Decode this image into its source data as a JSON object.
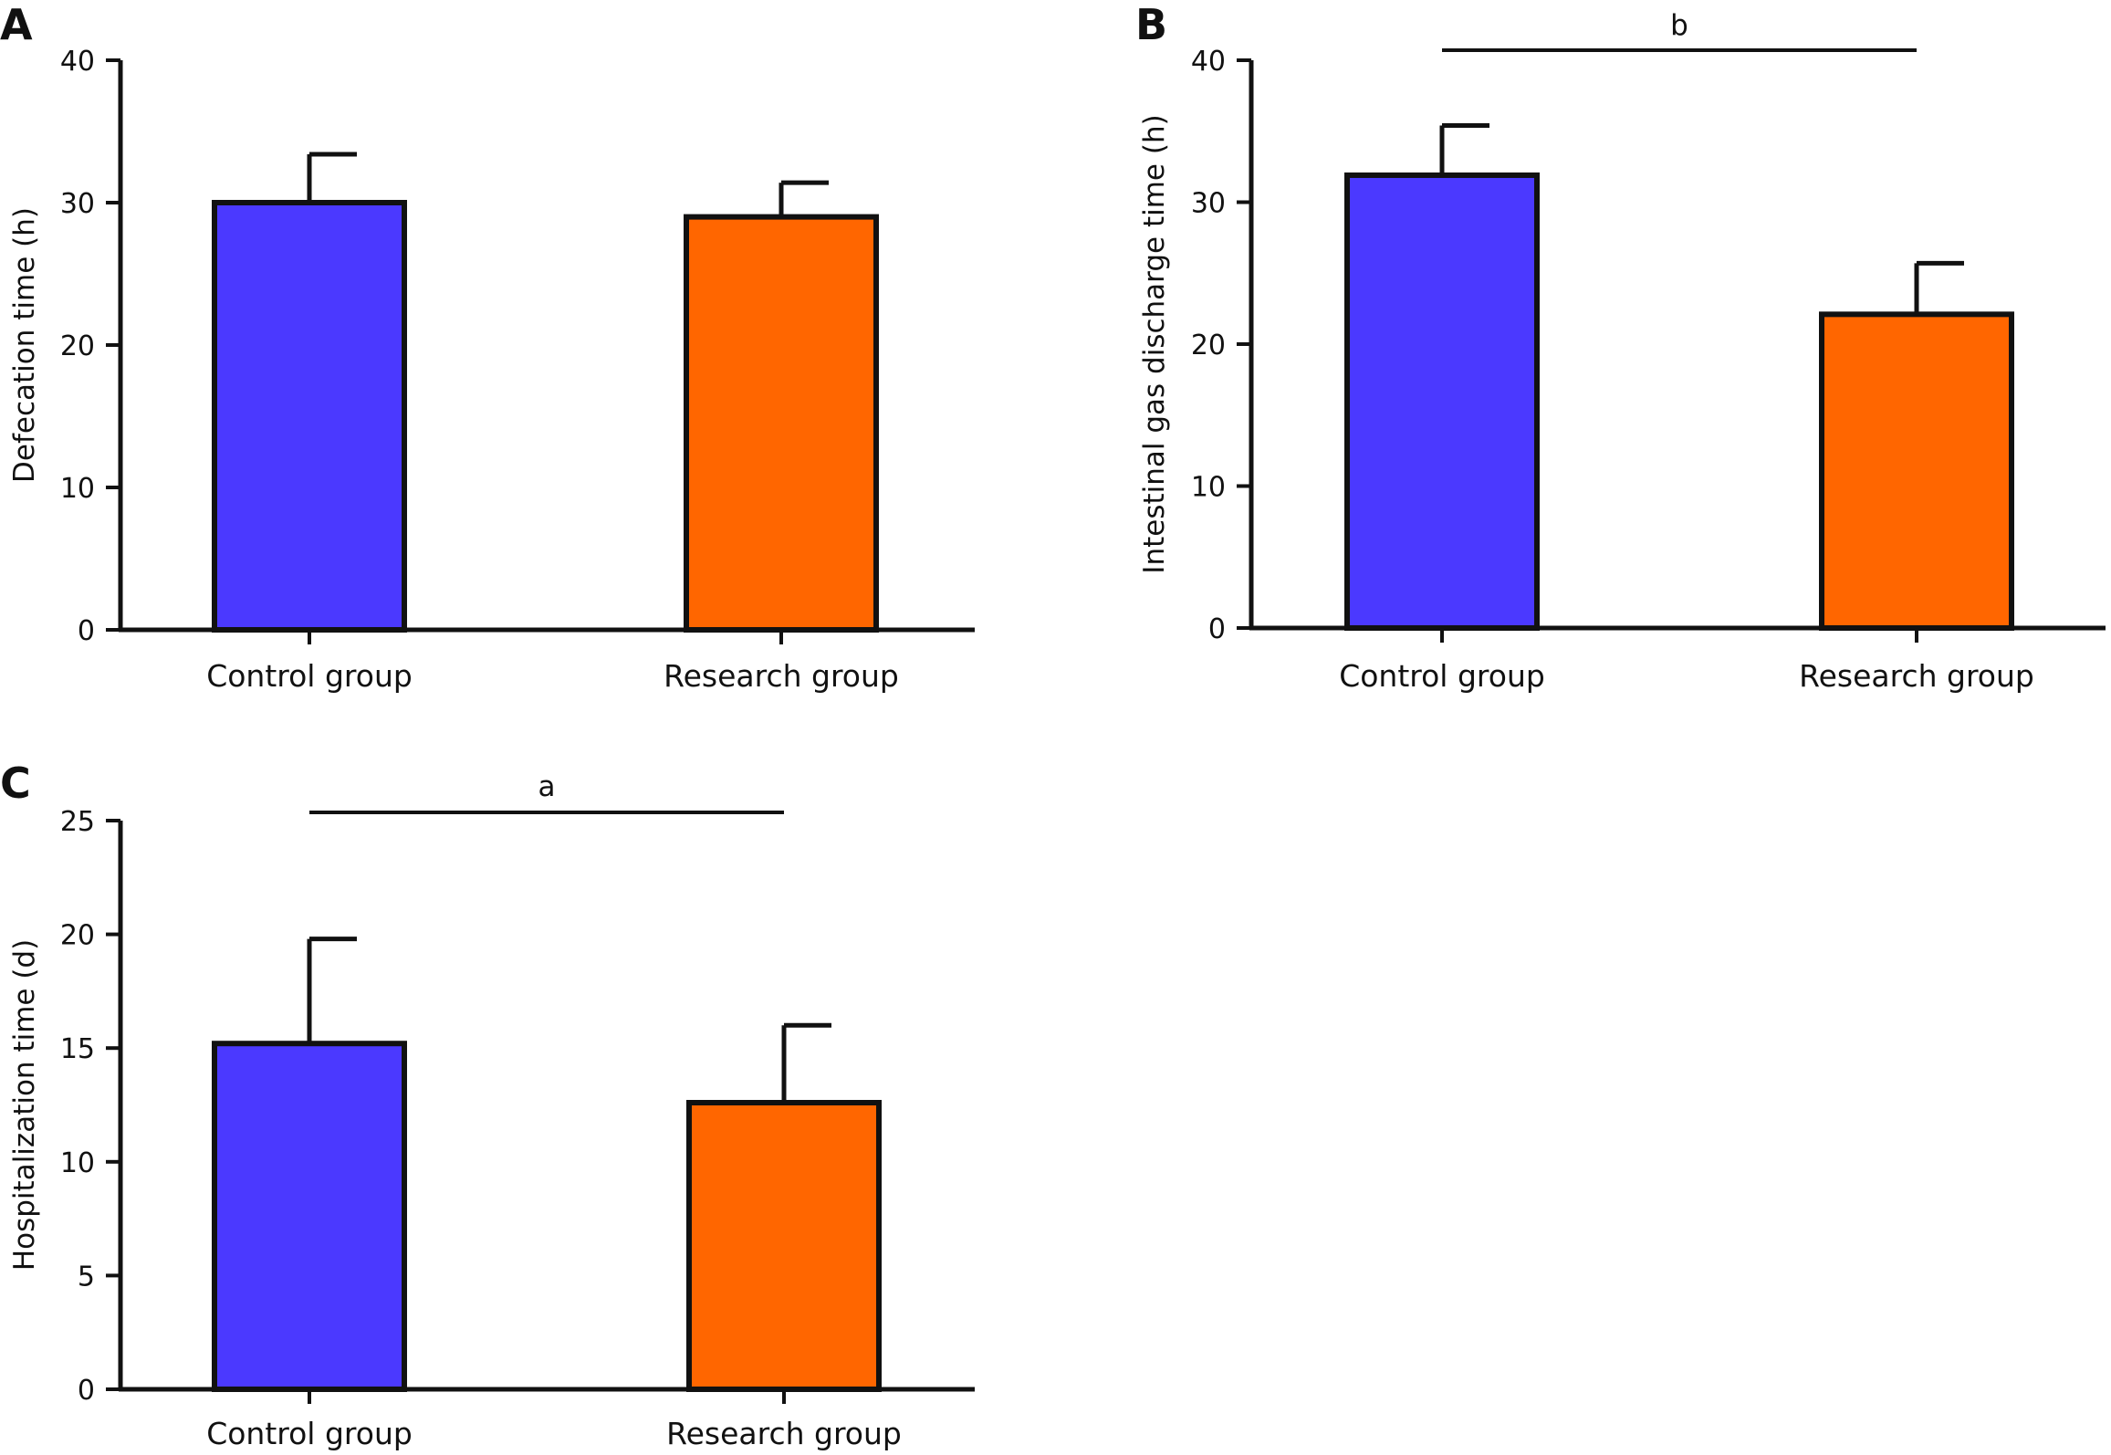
{
  "chart_data": [
    {
      "panel": "A",
      "type": "bar",
      "categories": [
        "Control group",
        "Research group"
      ],
      "values": [
        30,
        29
      ],
      "errors": [
        3.4,
        2.4
      ],
      "ylabel": "Defecation time (h)",
      "xlabel": "",
      "ylim": [
        0,
        40
      ],
      "yticks": [
        0,
        10,
        20,
        30,
        40
      ],
      "significance": null,
      "colors": [
        "#4b39ff",
        "#ff6600"
      ]
    },
    {
      "panel": "B",
      "type": "bar",
      "categories": [
        "Control group",
        "Research group"
      ],
      "values": [
        31.9,
        22.1
      ],
      "errors": [
        3.5,
        3.6
      ],
      "ylabel": "Intestinal gas discharge time (h)",
      "xlabel": "",
      "ylim": [
        0,
        40
      ],
      "yticks": [
        0,
        10,
        20,
        30,
        40
      ],
      "significance": "b",
      "colors": [
        "#4b39ff",
        "#ff6600"
      ]
    },
    {
      "panel": "C",
      "type": "bar",
      "categories": [
        "Control group",
        "Research group"
      ],
      "values": [
        15.2,
        12.6
      ],
      "errors": [
        4.6,
        3.4
      ],
      "ylabel": "Hospitalization time (d)",
      "xlabel": "",
      "ylim": [
        0,
        25
      ],
      "yticks": [
        0,
        5,
        10,
        15,
        20,
        25
      ],
      "significance": "a",
      "colors": [
        "#4b39ff",
        "#ff6600"
      ]
    }
  ]
}
